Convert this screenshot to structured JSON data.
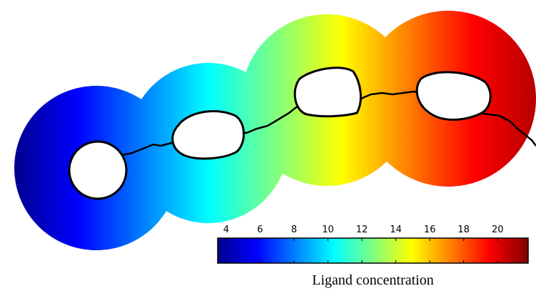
{
  "colorbar": {
    "label": "Ligand concentration",
    "lim": [
      3.5,
      21.8
    ],
    "ticks": [
      4,
      6,
      8,
      10,
      12,
      14,
      16,
      18,
      20
    ]
  }
}
